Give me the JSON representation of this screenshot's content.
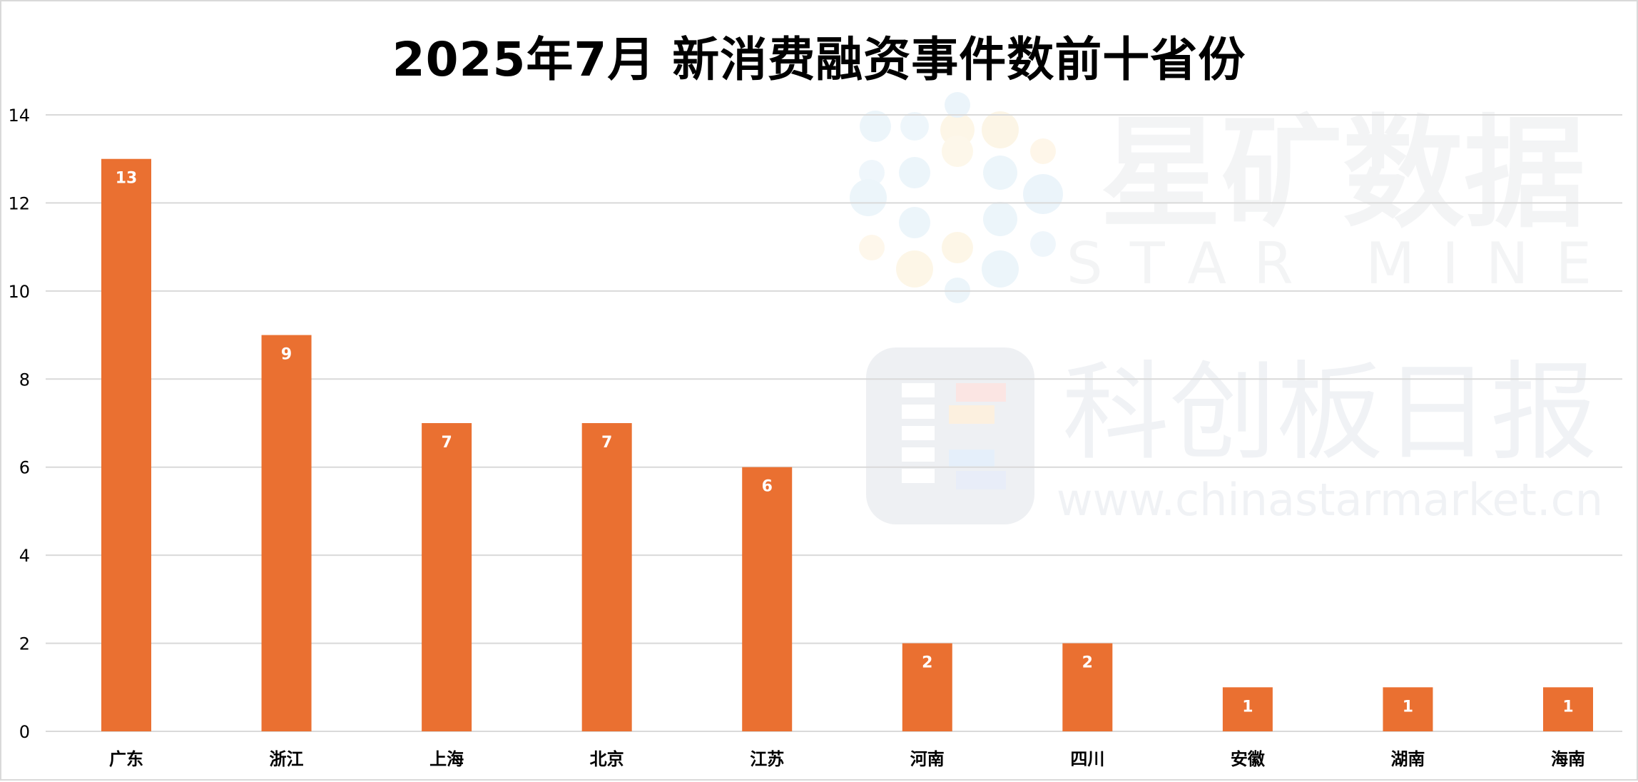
{
  "title": "2025年7月 新消费融资事件数前十省份",
  "watermark": {
    "brand_cn": "星矿数据",
    "brand_en": "STAR MINE",
    "outlet_cn": "科创板日报",
    "url": "www.chinastarmarket.cn"
  },
  "colors": {
    "bar": "#EA7031",
    "grid": "#D9D9D9",
    "label": "#FFFFFF"
  },
  "chart_data": {
    "type": "bar",
    "title": "2025年7月 新消费融资事件数前十省份",
    "categories": [
      "广东",
      "浙江",
      "上海",
      "北京",
      "江苏",
      "河南",
      "四川",
      "安徽",
      "湖南",
      "海南"
    ],
    "values": [
      13,
      9,
      7,
      7,
      6,
      2,
      2,
      1,
      1,
      1
    ],
    "ylim": [
      0,
      14
    ],
    "yticks": [
      0,
      2,
      4,
      6,
      8,
      10,
      12,
      14
    ],
    "xlabel": "",
    "ylabel": "",
    "grid": true,
    "legend": "none"
  }
}
